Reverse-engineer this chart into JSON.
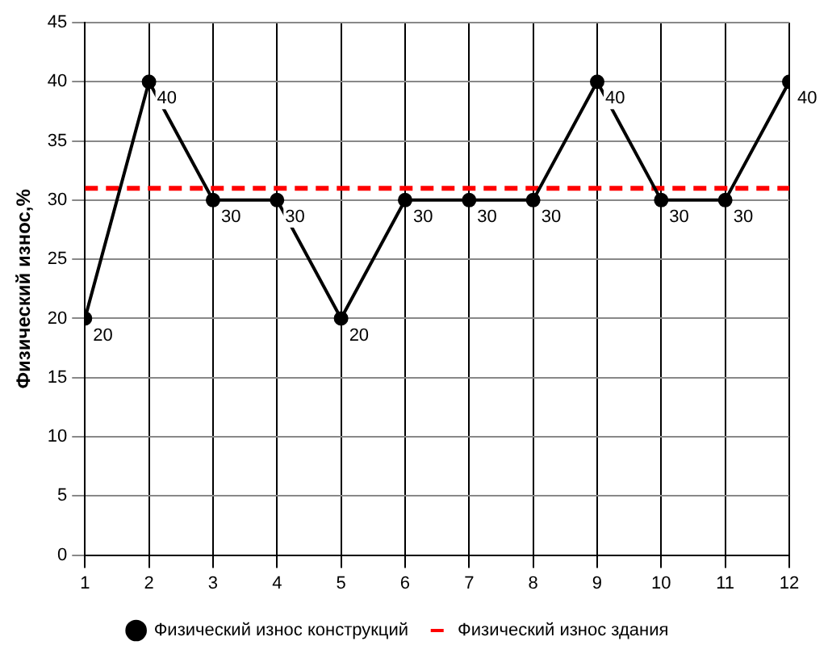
{
  "chart_data": {
    "type": "line",
    "ylabel": "Физический износ,%",
    "x": [
      1,
      2,
      3,
      4,
      5,
      6,
      7,
      8,
      9,
      10,
      11,
      12
    ],
    "series": [
      {
        "name": "Физический износ конструкций",
        "color": "#000000",
        "values": [
          20,
          40,
          30,
          30,
          20,
          30,
          30,
          30,
          40,
          30,
          30,
          40
        ]
      }
    ],
    "ref_lines": [
      {
        "axis": "y",
        "value": 31,
        "label": "Физический износ здания",
        "color": "#ff0000",
        "line_style": "dashed"
      }
    ],
    "xlim": [
      1,
      12
    ],
    "xticks": [
      1,
      2,
      3,
      4,
      5,
      6,
      7,
      8,
      9,
      10,
      11,
      12
    ],
    "ylim": [
      0,
      45
    ],
    "yticks": [
      0,
      5,
      10,
      15,
      20,
      25,
      30,
      35,
      40,
      45
    ],
    "grid": true,
    "legend": "bottom",
    "marker": "circle",
    "line_style": "solid",
    "data_labels": true
  }
}
